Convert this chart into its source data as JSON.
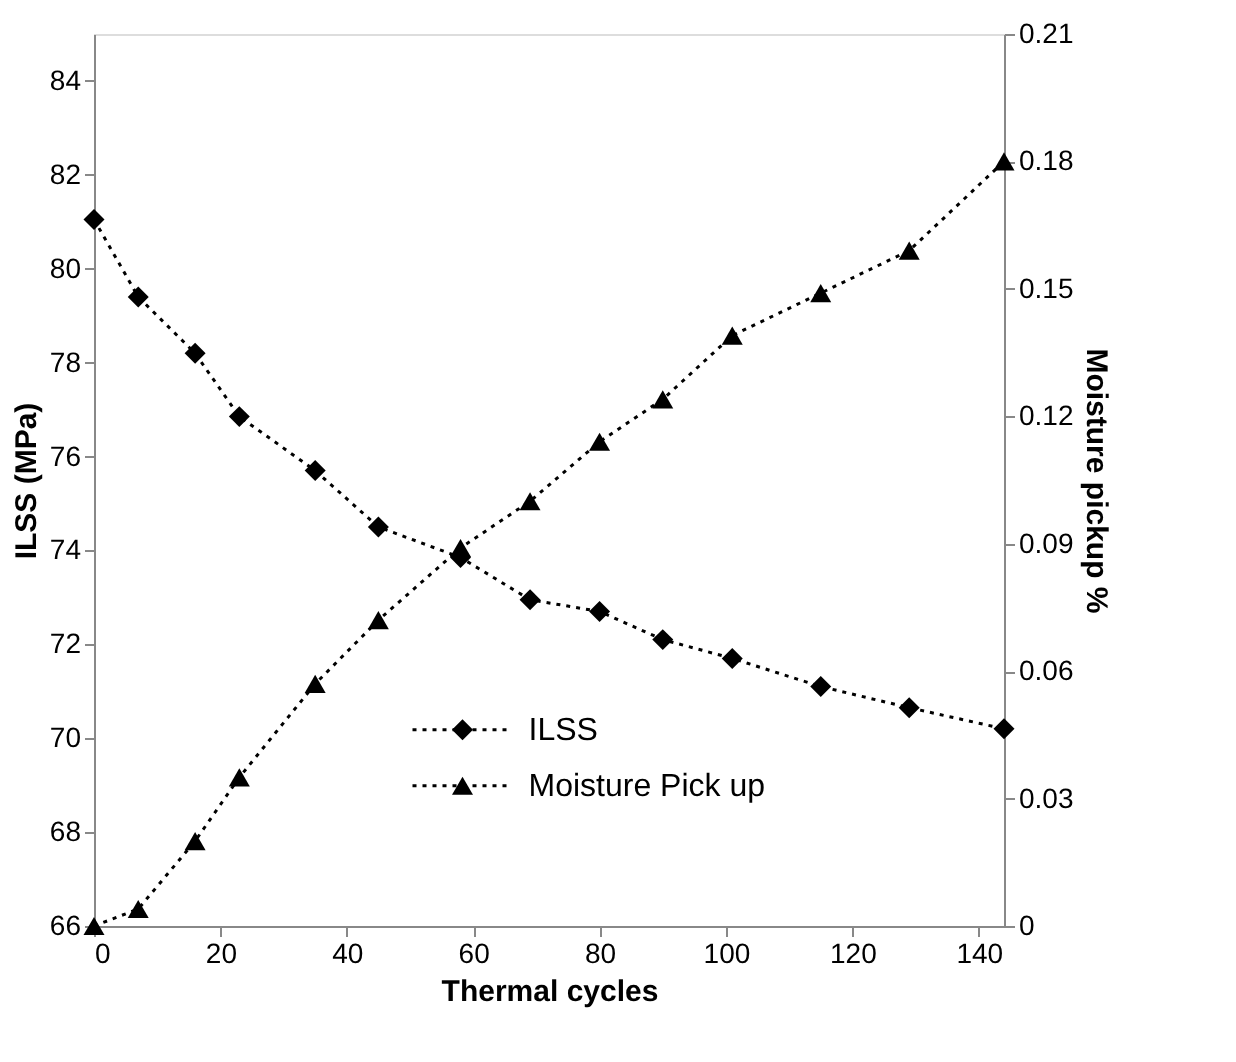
{
  "chart_data": {
    "type": "line",
    "xlabel": "Thermal cycles",
    "ylabel": "ILSS (MPa)",
    "y2label": "Moisture pickup %",
    "x": [
      0,
      7,
      16,
      23,
      35,
      45,
      58,
      69,
      80,
      90,
      101,
      115,
      129,
      144
    ],
    "series": [
      {
        "name": "ILSS",
        "color": "#000000",
        "marker": "diamond",
        "values": [
          81.05,
          79.4,
          78.2,
          76.85,
          75.7,
          74.5,
          73.85,
          72.95,
          72.7,
          72.1,
          71.7,
          71.1,
          70.65,
          70.2
        ]
      },
      {
        "name": "Moisture Pick up",
        "color": "#000000",
        "marker": "triangle",
        "axis": "y2",
        "values": [
          0,
          0.004,
          0.02,
          0.035,
          0.057,
          0.072,
          0.089,
          0.1,
          0.114,
          0.124,
          0.139,
          0.149,
          0.159,
          0.18
        ]
      }
    ],
    "xlim": [
      0,
      144
    ],
    "xticks": [
      0,
      20,
      40,
      60,
      80,
      100,
      120,
      140
    ],
    "ylim": [
      66,
      85
    ],
    "yticks": [
      66,
      68,
      70,
      72,
      74,
      76,
      78,
      80,
      82,
      84
    ],
    "y2lim": [
      0,
      0.21
    ],
    "y2ticks": [
      0,
      0.03,
      0.06,
      0.09,
      0.12,
      0.15,
      0.18,
      0.21
    ],
    "line_style": "dotted",
    "grid": false,
    "legend": "bottom"
  }
}
